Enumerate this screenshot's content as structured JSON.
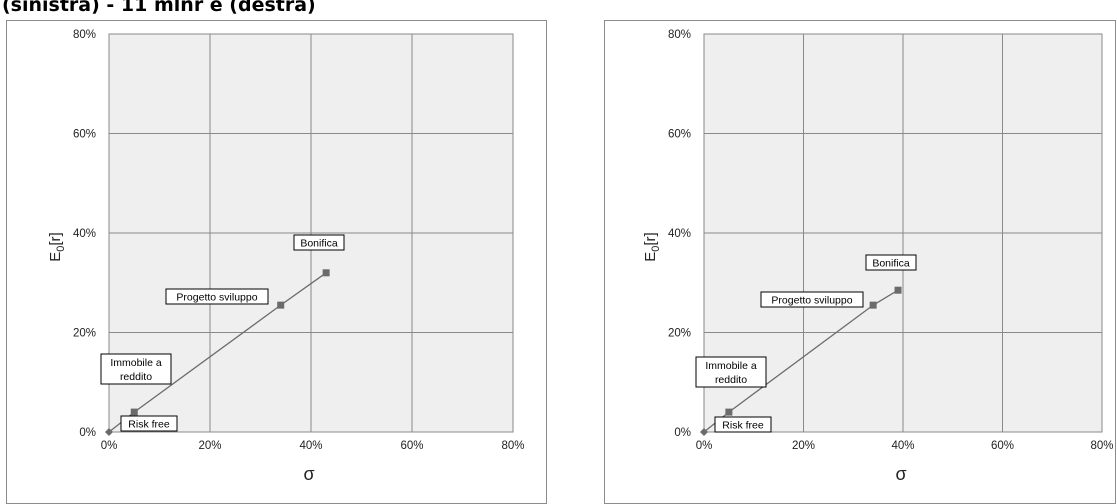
{
  "caption": "(sinistra) - 11 mlnr e (destra)",
  "colors": {
    "plot_bg": "#efefef",
    "grid": "#8a8a8a",
    "series": "#6b6b6b",
    "marker": "#6b6b6b",
    "frame": "#8c8c8c"
  },
  "chart_data": [
    {
      "type": "line",
      "title": "",
      "xlabel": "σ",
      "ylabel": "E0[r]",
      "xlim": [
        0,
        0.8
      ],
      "ylim": [
        0,
        0.8
      ],
      "x_ticks": [
        "0%",
        "20%",
        "40%",
        "60%",
        "80%"
      ],
      "y_ticks": [
        "0%",
        "20%",
        "40%",
        "60%",
        "80%"
      ],
      "grid": true,
      "series": [
        {
          "points": [
            {
              "label": "Risk free",
              "x": 0.0,
              "y": 0.0
            },
            {
              "label": "Immobile a reddito",
              "x": 0.05,
              "y": 0.04
            },
            {
              "label": "Progetto sviluppo",
              "x": 0.34,
              "y": 0.255
            },
            {
              "label": "Bonifica",
              "x": 0.43,
              "y": 0.32
            }
          ]
        }
      ]
    },
    {
      "type": "line",
      "title": "",
      "xlabel": "σ",
      "ylabel": "E0[r]",
      "xlim": [
        0,
        0.8
      ],
      "ylim": [
        0,
        0.8
      ],
      "x_ticks": [
        "0%",
        "20%",
        "40%",
        "60%",
        "80%"
      ],
      "y_ticks": [
        "0%",
        "20%",
        "40%",
        "60%",
        "80%"
      ],
      "grid": true,
      "series": [
        {
          "points": [
            {
              "label": "Risk free",
              "x": 0.0,
              "y": 0.0
            },
            {
              "label": "Immobile a reddito",
              "x": 0.05,
              "y": 0.04
            },
            {
              "label": "Progetto sviluppo",
              "x": 0.34,
              "y": 0.255
            },
            {
              "label": "Bonifica",
              "x": 0.39,
              "y": 0.285
            }
          ]
        }
      ]
    }
  ]
}
